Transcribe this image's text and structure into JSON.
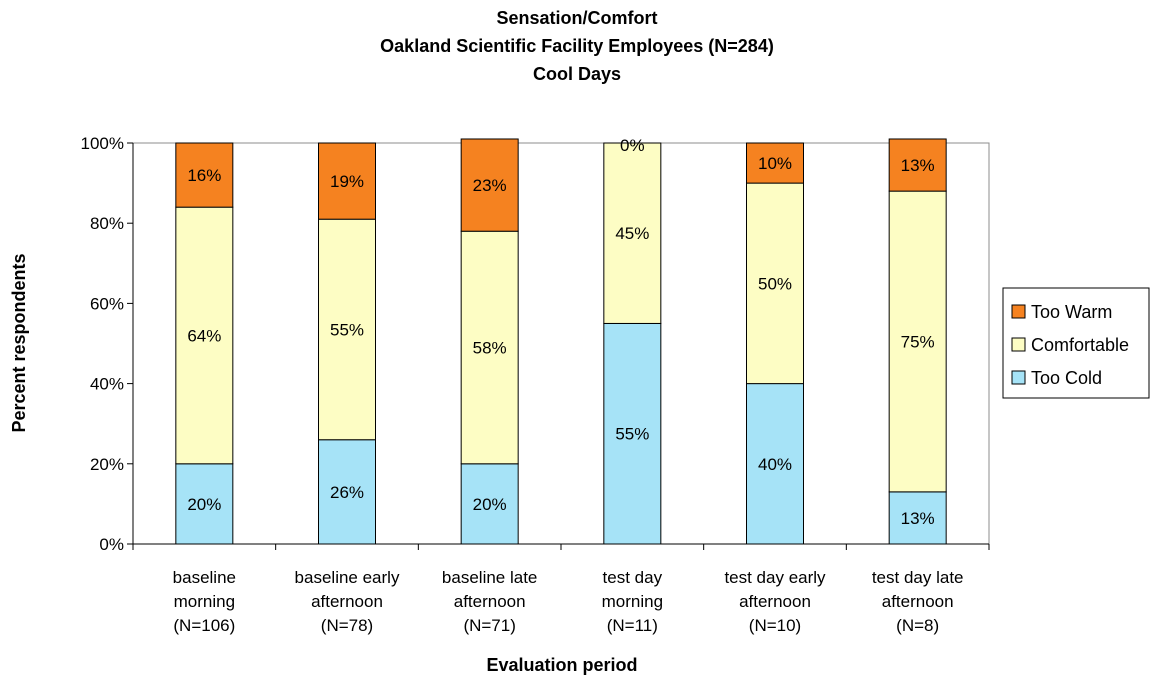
{
  "chart_data": {
    "type": "bar",
    "stacked": true,
    "title": [
      "Sensation/Comfort",
      "Oakland Scientific Facility Employees (N=284)",
      "Cool Days"
    ],
    "xlabel": "Evaluation period",
    "ylabel": "Percent respondents",
    "ylim": [
      0,
      100
    ],
    "yticks": [
      "0%",
      "20%",
      "40%",
      "60%",
      "80%",
      "100%"
    ],
    "ytick_values": [
      0,
      20,
      40,
      60,
      80,
      100
    ],
    "grid": false,
    "legend_position": "right",
    "categories": [
      [
        "baseline",
        "morning",
        "(N=106)"
      ],
      [
        "baseline early",
        "afternoon",
        "(N=78)"
      ],
      [
        "baseline late",
        "afternoon",
        "(N=71)"
      ],
      [
        "test day",
        "morning",
        "(N=11)"
      ],
      [
        "test day early",
        "afternoon",
        "(N=10)"
      ],
      [
        "test day late",
        "afternoon",
        "(N=8)"
      ]
    ],
    "series": [
      {
        "name": "Too Cold",
        "color": "#a6e3f7",
        "values": [
          20,
          26,
          20,
          55,
          40,
          13
        ],
        "labels": [
          "20%",
          "26%",
          "20%",
          "55%",
          "40%",
          "13%"
        ]
      },
      {
        "name": "Comfortable",
        "color": "#fdfdc4",
        "values": [
          64,
          55,
          58,
          45,
          50,
          75
        ],
        "labels": [
          "64%",
          "55%",
          "58%",
          "45%",
          "50%",
          "75%"
        ]
      },
      {
        "name": "Too Warm",
        "color": "#f58220",
        "values": [
          16,
          19,
          23,
          0,
          10,
          13
        ],
        "labels": [
          "16%",
          "19%",
          "23%",
          "0%",
          "10%",
          "13%"
        ]
      }
    ],
    "legend_order": [
      "Too Warm",
      "Comfortable",
      "Too Cold"
    ]
  }
}
